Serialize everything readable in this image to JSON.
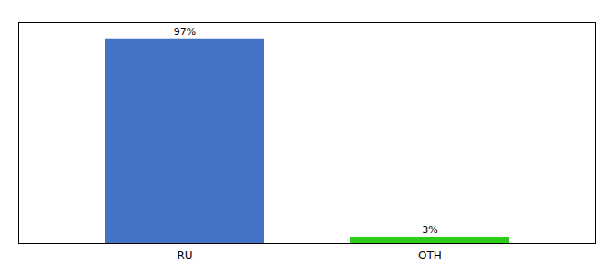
{
  "chart_data": {
    "type": "bar",
    "categories": [
      "RU",
      "OTH"
    ],
    "values": [
      97,
      3
    ],
    "colors": [
      "#4472c4",
      "#2ecc1a"
    ],
    "data_labels": true,
    "value_labels": [
      "97%",
      "3%"
    ],
    "ylim": [
      0,
      105
    ],
    "tick_labels": "x"
  }
}
